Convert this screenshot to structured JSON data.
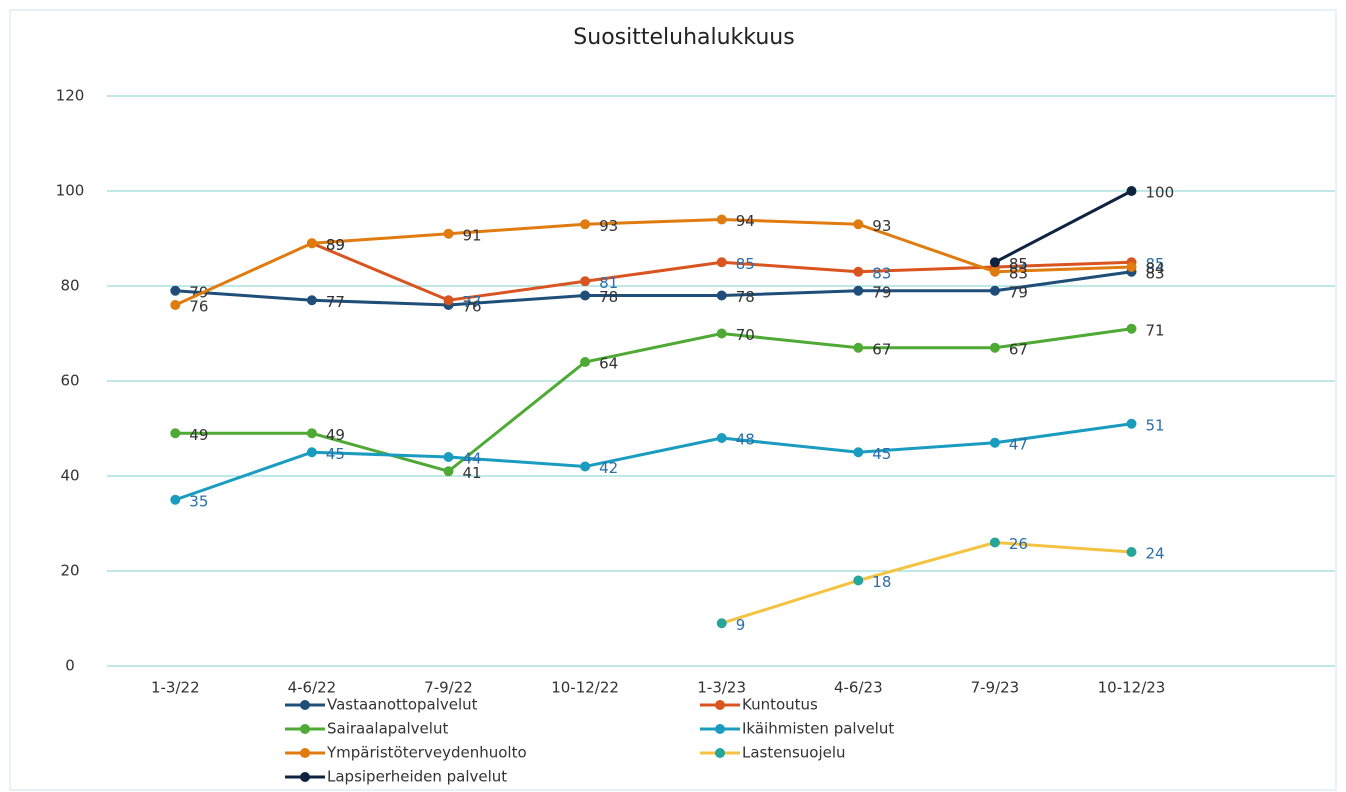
{
  "chart_data": {
    "type": "line",
    "title": "Suositteluhalukkuus",
    "categories": [
      "1-3/22",
      "4-6/22",
      "7-9/22",
      "10-12/22",
      "1-3/23",
      "4-6/23",
      "7-9/23",
      "10-12/23"
    ],
    "series": [
      {
        "name": "Vastaanottopalvelut",
        "color": "#1f4e79",
        "values": [
          79,
          77,
          76,
          78,
          78,
          79,
          79,
          83
        ]
      },
      {
        "name": "Kuntoutus",
        "color": "#d9541e",
        "values": [
          null,
          89,
          77,
          81,
          85,
          83,
          84,
          85
        ]
      },
      {
        "name": "Sairaalapalvelut",
        "color": "#4eaa34",
        "values": [
          49,
          49,
          41,
          64,
          70,
          67,
          67,
          71
        ]
      },
      {
        "name": "Ikäihmisten palvelut",
        "color": "#1a9bc0",
        "values": [
          35,
          45,
          44,
          42,
          48,
          45,
          47,
          51
        ]
      },
      {
        "name": "Ympäristöterveydenhuolto",
        "color": "#e07b10",
        "values": [
          76,
          89,
          91,
          93,
          94,
          93,
          83,
          84
        ]
      },
      {
        "name": "Lastensuojelu",
        "color": "#f5c342",
        "marker_color": "#26a69a",
        "values": [
          null,
          null,
          null,
          null,
          9,
          18,
          26,
          24
        ]
      },
      {
        "name": "Lapsiperheiden palvelut",
        "color": "#0d2340",
        "values": [
          null,
          null,
          null,
          null,
          null,
          null,
          85,
          100
        ]
      }
    ],
    "ylim": [
      0,
      120
    ],
    "yticks": [
      0,
      20,
      40,
      60,
      80,
      100,
      120
    ],
    "grid": true
  }
}
